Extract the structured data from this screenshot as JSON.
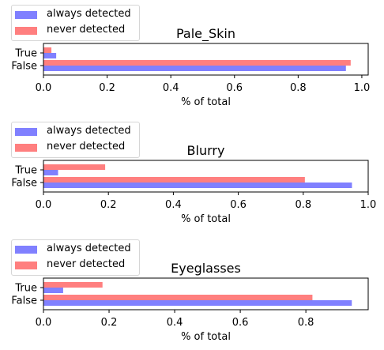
{
  "colors": {
    "always": "#8080ff",
    "never": "#ff7f7f",
    "axis": "#000000"
  },
  "chart_data": [
    {
      "type": "bar",
      "orientation": "horizontal",
      "title": "Pale_Skin",
      "categories": [
        "True",
        "False"
      ],
      "xlabel": "% of total",
      "xlim": [
        0,
        1.02
      ],
      "xticks": [
        "0.0",
        "0.2",
        "0.4",
        "0.6",
        "0.8",
        "1.0"
      ],
      "legend": [
        "always detected",
        "never detected"
      ],
      "legend_position": "top-left",
      "series": [
        {
          "name": "always detected",
          "values": [
            0.04,
            0.95
          ]
        },
        {
          "name": "never detected",
          "values": [
            0.025,
            0.965
          ]
        }
      ]
    },
    {
      "type": "bar",
      "orientation": "horizontal",
      "title": "Blurry",
      "categories": [
        "True",
        "False"
      ],
      "xlabel": "% of total",
      "xlim": [
        0,
        1.0
      ],
      "xticks": [
        "0.0",
        "0.2",
        "0.4",
        "0.6",
        "0.8",
        "1.0"
      ],
      "legend": [
        "always detected",
        "never detected"
      ],
      "legend_position": "top-left",
      "series": [
        {
          "name": "always detected",
          "values": [
            0.045,
            0.95
          ]
        },
        {
          "name": "never detected",
          "values": [
            0.19,
            0.805
          ]
        }
      ]
    },
    {
      "type": "bar",
      "orientation": "horizontal",
      "title": "Eyeglasses",
      "categories": [
        "True",
        "False"
      ],
      "xlabel": "% of total",
      "xlim": [
        0,
        0.99
      ],
      "xticks": [
        "0.0",
        "0.2",
        "0.4",
        "0.6",
        "0.8"
      ],
      "legend": [
        "always detected",
        "never detected"
      ],
      "legend_position": "top-left",
      "series": [
        {
          "name": "always detected",
          "values": [
            0.06,
            0.94
          ]
        },
        {
          "name": "never detected",
          "values": [
            0.18,
            0.82
          ]
        }
      ]
    }
  ]
}
